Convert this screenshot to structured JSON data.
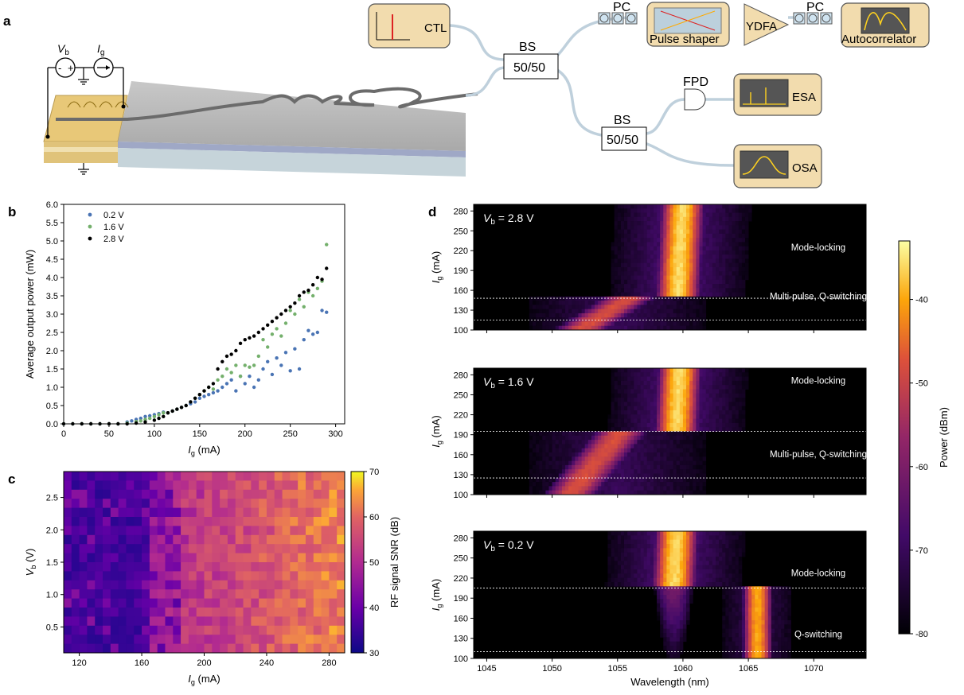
{
  "panels": {
    "a": "a",
    "b": "b",
    "c": "c",
    "d": "d"
  },
  "setup": {
    "CTL": "CTL",
    "BS": "BS",
    "ratio": "50/50",
    "PC": "PC",
    "pulse_shaper": "Pulse shaper",
    "YDFA": "YDFA",
    "autocorrelator": "Autocorrelator",
    "FPD": "FPD",
    "ESA": "ESA",
    "OSA": "OSA",
    "Vb": "V",
    "Vb_sub": "b",
    "Ig": "I",
    "Ig_sub": "g"
  },
  "colors": {
    "blue": "#4a74b4",
    "green": "#74b06c",
    "black": "#000000"
  },
  "chart_data": [
    {
      "type": "scatter",
      "panel": "b",
      "xlabel": "I",
      "xlabel_sub": "g",
      "xlabel_unit": " (mA)",
      "ylabel": "Average output power (mW)",
      "xlim": [
        0,
        310
      ],
      "ylim": [
        0,
        6
      ],
      "xticks": [
        "0",
        "50",
        "100",
        "150",
        "200",
        "250",
        "300"
      ],
      "yticks": [
        "0.0",
        "0.5",
        "1.0",
        "1.5",
        "2.0",
        "2.5",
        "3.0",
        "3.5",
        "4.0",
        "4.5",
        "5.0",
        "5.5",
        "6.0"
      ],
      "legend": "top-left",
      "series": [
        {
          "name": "0.2 V",
          "color": "#4a74b4",
          "x": [
            0,
            10,
            20,
            30,
            40,
            50,
            60,
            70,
            75,
            80,
            85,
            90,
            95,
            100,
            105,
            110,
            115,
            120,
            125,
            130,
            135,
            140,
            145,
            150,
            155,
            160,
            165,
            170,
            175,
            180,
            185,
            190,
            195,
            200,
            205,
            210,
            215,
            220,
            225,
            230,
            235,
            240,
            245,
            250,
            255,
            260,
            265,
            270,
            275,
            280,
            285,
            290
          ],
          "y": [
            0,
            0,
            0,
            0,
            0,
            0,
            0,
            0.05,
            0.08,
            0.12,
            0.15,
            0.2,
            0.22,
            0.25,
            0.28,
            0.32,
            0.3,
            0.35,
            0.4,
            0.45,
            0.5,
            0.55,
            0.6,
            0.7,
            0.75,
            0.8,
            0.85,
            0.9,
            1.0,
            1.1,
            1.2,
            0.9,
            1.3,
            1.1,
            1.3,
            1.0,
            1.2,
            1.5,
            1.7,
            1.35,
            1.8,
            1.6,
            1.95,
            1.45,
            2.05,
            1.5,
            2.3,
            2.55,
            2.45,
            2.5,
            3.1,
            3.05
          ]
        },
        {
          "name": "1.6 V",
          "color": "#74b06c",
          "x": [
            0,
            10,
            20,
            30,
            40,
            50,
            60,
            70,
            80,
            85,
            90,
            95,
            100,
            105,
            110,
            115,
            120,
            125,
            130,
            135,
            140,
            145,
            150,
            155,
            160,
            165,
            170,
            175,
            180,
            185,
            190,
            195,
            200,
            205,
            210,
            215,
            220,
            225,
            230,
            235,
            240,
            245,
            250,
            255,
            260,
            265,
            270,
            275,
            280,
            285,
            290
          ],
          "y": [
            0,
            0,
            0,
            0,
            0,
            0,
            0,
            0.02,
            0.06,
            0.08,
            0.12,
            0.15,
            0.2,
            0.25,
            0.3,
            0.3,
            0.35,
            0.4,
            0.45,
            0.5,
            0.6,
            0.7,
            0.8,
            0.9,
            1.0,
            0.95,
            1.2,
            1.3,
            1.5,
            1.4,
            1.6,
            1.3,
            1.6,
            1.55,
            1.6,
            1.85,
            2.3,
            2.1,
            2.45,
            2.6,
            2.4,
            2.75,
            3.1,
            3.0,
            3.4,
            3.2,
            3.6,
            3.5,
            3.7,
            3.9,
            4.9
          ]
        },
        {
          "name": "2.8 V",
          "color": "#000000",
          "x": [
            0,
            10,
            20,
            30,
            40,
            50,
            60,
            70,
            80,
            90,
            100,
            105,
            110,
            115,
            120,
            125,
            130,
            135,
            140,
            145,
            150,
            155,
            160,
            165,
            170,
            175,
            180,
            185,
            190,
            195,
            200,
            205,
            210,
            215,
            220,
            225,
            230,
            235,
            240,
            245,
            250,
            255,
            260,
            265,
            270,
            275,
            280,
            285,
            290
          ],
          "y": [
            0,
            0,
            0,
            0,
            0,
            0,
            0,
            0,
            0.02,
            0.05,
            0.1,
            0.15,
            0.2,
            0.3,
            0.35,
            0.4,
            0.45,
            0.5,
            0.6,
            0.7,
            0.8,
            0.9,
            1.0,
            1.1,
            1.5,
            1.7,
            1.85,
            1.9,
            2.0,
            2.2,
            2.3,
            2.35,
            2.4,
            2.5,
            2.6,
            2.7,
            2.8,
            2.9,
            3.0,
            3.1,
            3.2,
            3.3,
            3.5,
            3.6,
            3.65,
            3.8,
            4.0,
            3.95,
            4.25
          ]
        }
      ]
    },
    {
      "type": "heatmap",
      "panel": "c",
      "xlabel": "I",
      "xlabel_sub": "g",
      "xlabel_unit": " (mA)",
      "ylabel": "V",
      "ylabel_sub": "b",
      "ylabel_unit": " (V)",
      "xticks": [
        "120",
        "160",
        "200",
        "240",
        "280"
      ],
      "yticks": [
        "0.5",
        "1.0",
        "1.5",
        "2.0",
        "2.5"
      ],
      "colorbar_label": "RF signal SNR (dB)",
      "colorbar_ticks": [
        "30",
        "40",
        "50",
        "60",
        "70"
      ],
      "zlim": [
        30,
        70
      ]
    },
    {
      "type": "heatmap",
      "panel": "d",
      "xlabel": "Wavelength (nm)",
      "ylabel": "I",
      "ylabel_sub": "g",
      "ylabel_unit": " (mA)",
      "xticks": [
        "1045",
        "1050",
        "1055",
        "1060",
        "1065",
        "1070"
      ],
      "yticks": [
        "100",
        "130",
        "160",
        "190",
        "220",
        "250",
        "280"
      ],
      "yticks_mid": [
        "100",
        "130",
        "160",
        "190",
        "220",
        "250",
        "280"
      ],
      "colorbar_label": "Power (dBm)",
      "colorbar_ticks": [
        "-40",
        "-50",
        "-60",
        "-70",
        "-80"
      ],
      "zlim": [
        -80,
        -33
      ],
      "subplots": [
        {
          "vb": "V",
          "vb_sub": "b",
          "vb_val": " = 2.8 V",
          "upper_label": "Mode-locking",
          "lower_label": "Multi-pulse, Q-switching"
        },
        {
          "vb": "V",
          "vb_sub": "b",
          "vb_val": " = 1.6 V",
          "upper_label": "Mode-locking",
          "lower_label": "Multi-pulse, Q-switching"
        },
        {
          "vb": "V",
          "vb_sub": "b",
          "vb_val": " = 0.2 V",
          "upper_label": "Mode-locking",
          "lower_label": "Q-switching"
        }
      ]
    }
  ]
}
